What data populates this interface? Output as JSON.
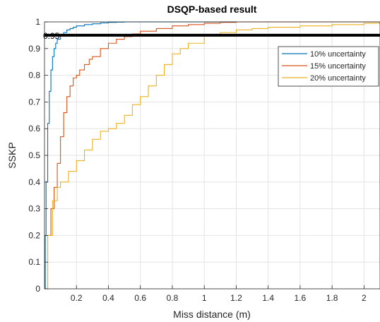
{
  "chart_data": {
    "type": "line",
    "title": "DSQP-based result",
    "xlabel": "Miss distance (m)",
    "ylabel": "SSKP",
    "xlim": [
      0,
      2.1
    ],
    "ylim": [
      0,
      1
    ],
    "xticks": [
      0.2,
      0.4,
      0.6,
      0.8,
      1,
      1.2,
      1.4,
      1.6,
      1.8,
      2
    ],
    "xtick_labels": [
      "0.2",
      "0.4",
      "0.6",
      "0.8",
      "1",
      "1.2",
      "1.4",
      "1.6",
      "1.8",
      "2"
    ],
    "yticks": [
      0,
      0.1,
      0.2,
      0.3,
      0.4,
      0.5,
      0.6,
      0.7,
      0.8,
      0.9,
      1
    ],
    "ytick_labels": [
      "0",
      "0.1",
      "0.2",
      "0.3",
      "0.4",
      "0.5",
      "0.6",
      "0.7",
      "0.8",
      "0.9",
      "1"
    ],
    "grid": true,
    "legend_position": "top-right",
    "reference_line": {
      "y": 0.95,
      "label": "0.95",
      "color": "#000000"
    },
    "series": [
      {
        "name": "10% uncertainty",
        "color": "#0072BD",
        "x": [
          0,
          0.005,
          0.01,
          0.02,
          0.03,
          0.04,
          0.05,
          0.06,
          0.07,
          0.08,
          0.1,
          0.12,
          0.14,
          0.16,
          0.18,
          0.2,
          0.25,
          0.3,
          0.35,
          0.4,
          0.45,
          0.5,
          2.1
        ],
        "y": [
          0,
          0.2,
          0.4,
          0.62,
          0.74,
          0.82,
          0.87,
          0.9,
          0.92,
          0.935,
          0.95,
          0.96,
          0.97,
          0.975,
          0.98,
          0.985,
          0.99,
          0.993,
          0.996,
          0.998,
          0.999,
          1,
          1
        ]
      },
      {
        "name": "15% uncertainty",
        "color": "#D95319",
        "x": [
          0,
          0.02,
          0.04,
          0.06,
          0.08,
          0.1,
          0.12,
          0.14,
          0.16,
          0.18,
          0.2,
          0.22,
          0.25,
          0.28,
          0.3,
          0.35,
          0.4,
          0.45,
          0.5,
          0.55,
          0.6,
          0.7,
          0.8,
          0.9,
          1.0,
          1.1,
          1.2,
          2.1
        ],
        "y": [
          0,
          0.2,
          0.3,
          0.38,
          0.47,
          0.57,
          0.66,
          0.72,
          0.76,
          0.79,
          0.8,
          0.82,
          0.84,
          0.86,
          0.87,
          0.9,
          0.92,
          0.935,
          0.945,
          0.955,
          0.965,
          0.975,
          0.985,
          0.99,
          0.995,
          0.998,
          1,
          1
        ]
      },
      {
        "name": "20% uncertainty",
        "color": "#EDB120",
        "x": [
          0,
          0.02,
          0.05,
          0.08,
          0.1,
          0.15,
          0.2,
          0.25,
          0.3,
          0.35,
          0.4,
          0.45,
          0.5,
          0.55,
          0.6,
          0.65,
          0.7,
          0.75,
          0.8,
          0.85,
          0.9,
          1.0,
          1.1,
          1.2,
          1.3,
          1.4,
          1.6,
          1.8,
          2.0,
          2.1
        ],
        "y": [
          0,
          0.2,
          0.33,
          0.38,
          0.4,
          0.44,
          0.48,
          0.52,
          0.56,
          0.59,
          0.6,
          0.62,
          0.65,
          0.69,
          0.72,
          0.76,
          0.8,
          0.84,
          0.88,
          0.9,
          0.92,
          0.95,
          0.96,
          0.97,
          0.975,
          0.98,
          0.985,
          0.99,
          0.995,
          1
        ]
      }
    ]
  }
}
